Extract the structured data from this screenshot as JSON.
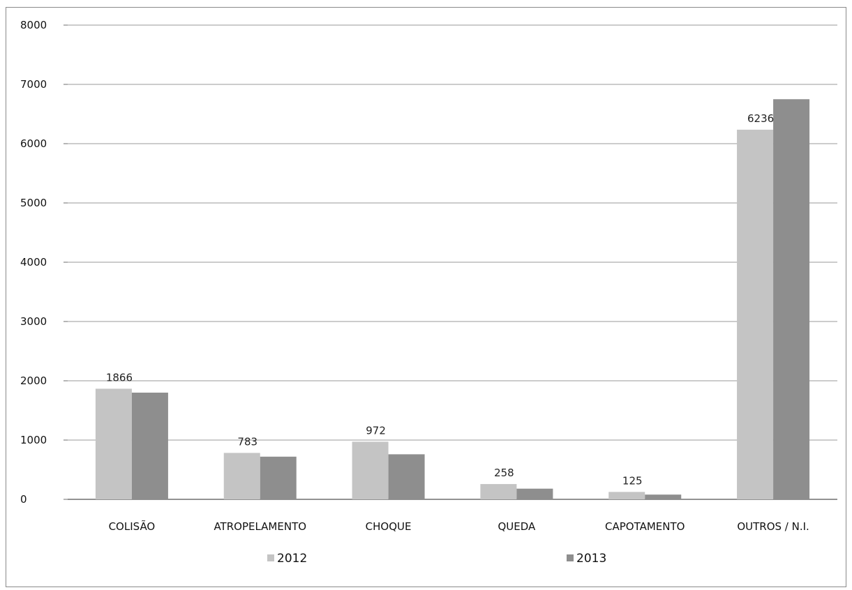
{
  "chart_data": {
    "type": "bar",
    "title": "",
    "xlabel": "",
    "ylabel": "",
    "categories": [
      "COLISÃO",
      "ATROPELAMENTO",
      "CHOQUE",
      "QUEDA",
      "CAPOTAMENTO",
      "OUTROS / N.I."
    ],
    "series": [
      {
        "name": "2012",
        "values": [
          1866,
          783,
          972,
          258,
          125,
          6236
        ],
        "color": "#c4c4c4",
        "data_labels": [
          "1866",
          "783",
          "972",
          "258",
          "125",
          "6236"
        ]
      },
      {
        "name": "2013",
        "values": [
          1800,
          720,
          760,
          180,
          80,
          6750
        ],
        "color": "#8e8e8e"
      }
    ],
    "ylim": [
      0,
      8000
    ],
    "yticks": [
      0,
      1000,
      2000,
      3000,
      4000,
      5000,
      6000,
      7000,
      8000
    ],
    "grid": true,
    "legend_position": "bottom"
  }
}
